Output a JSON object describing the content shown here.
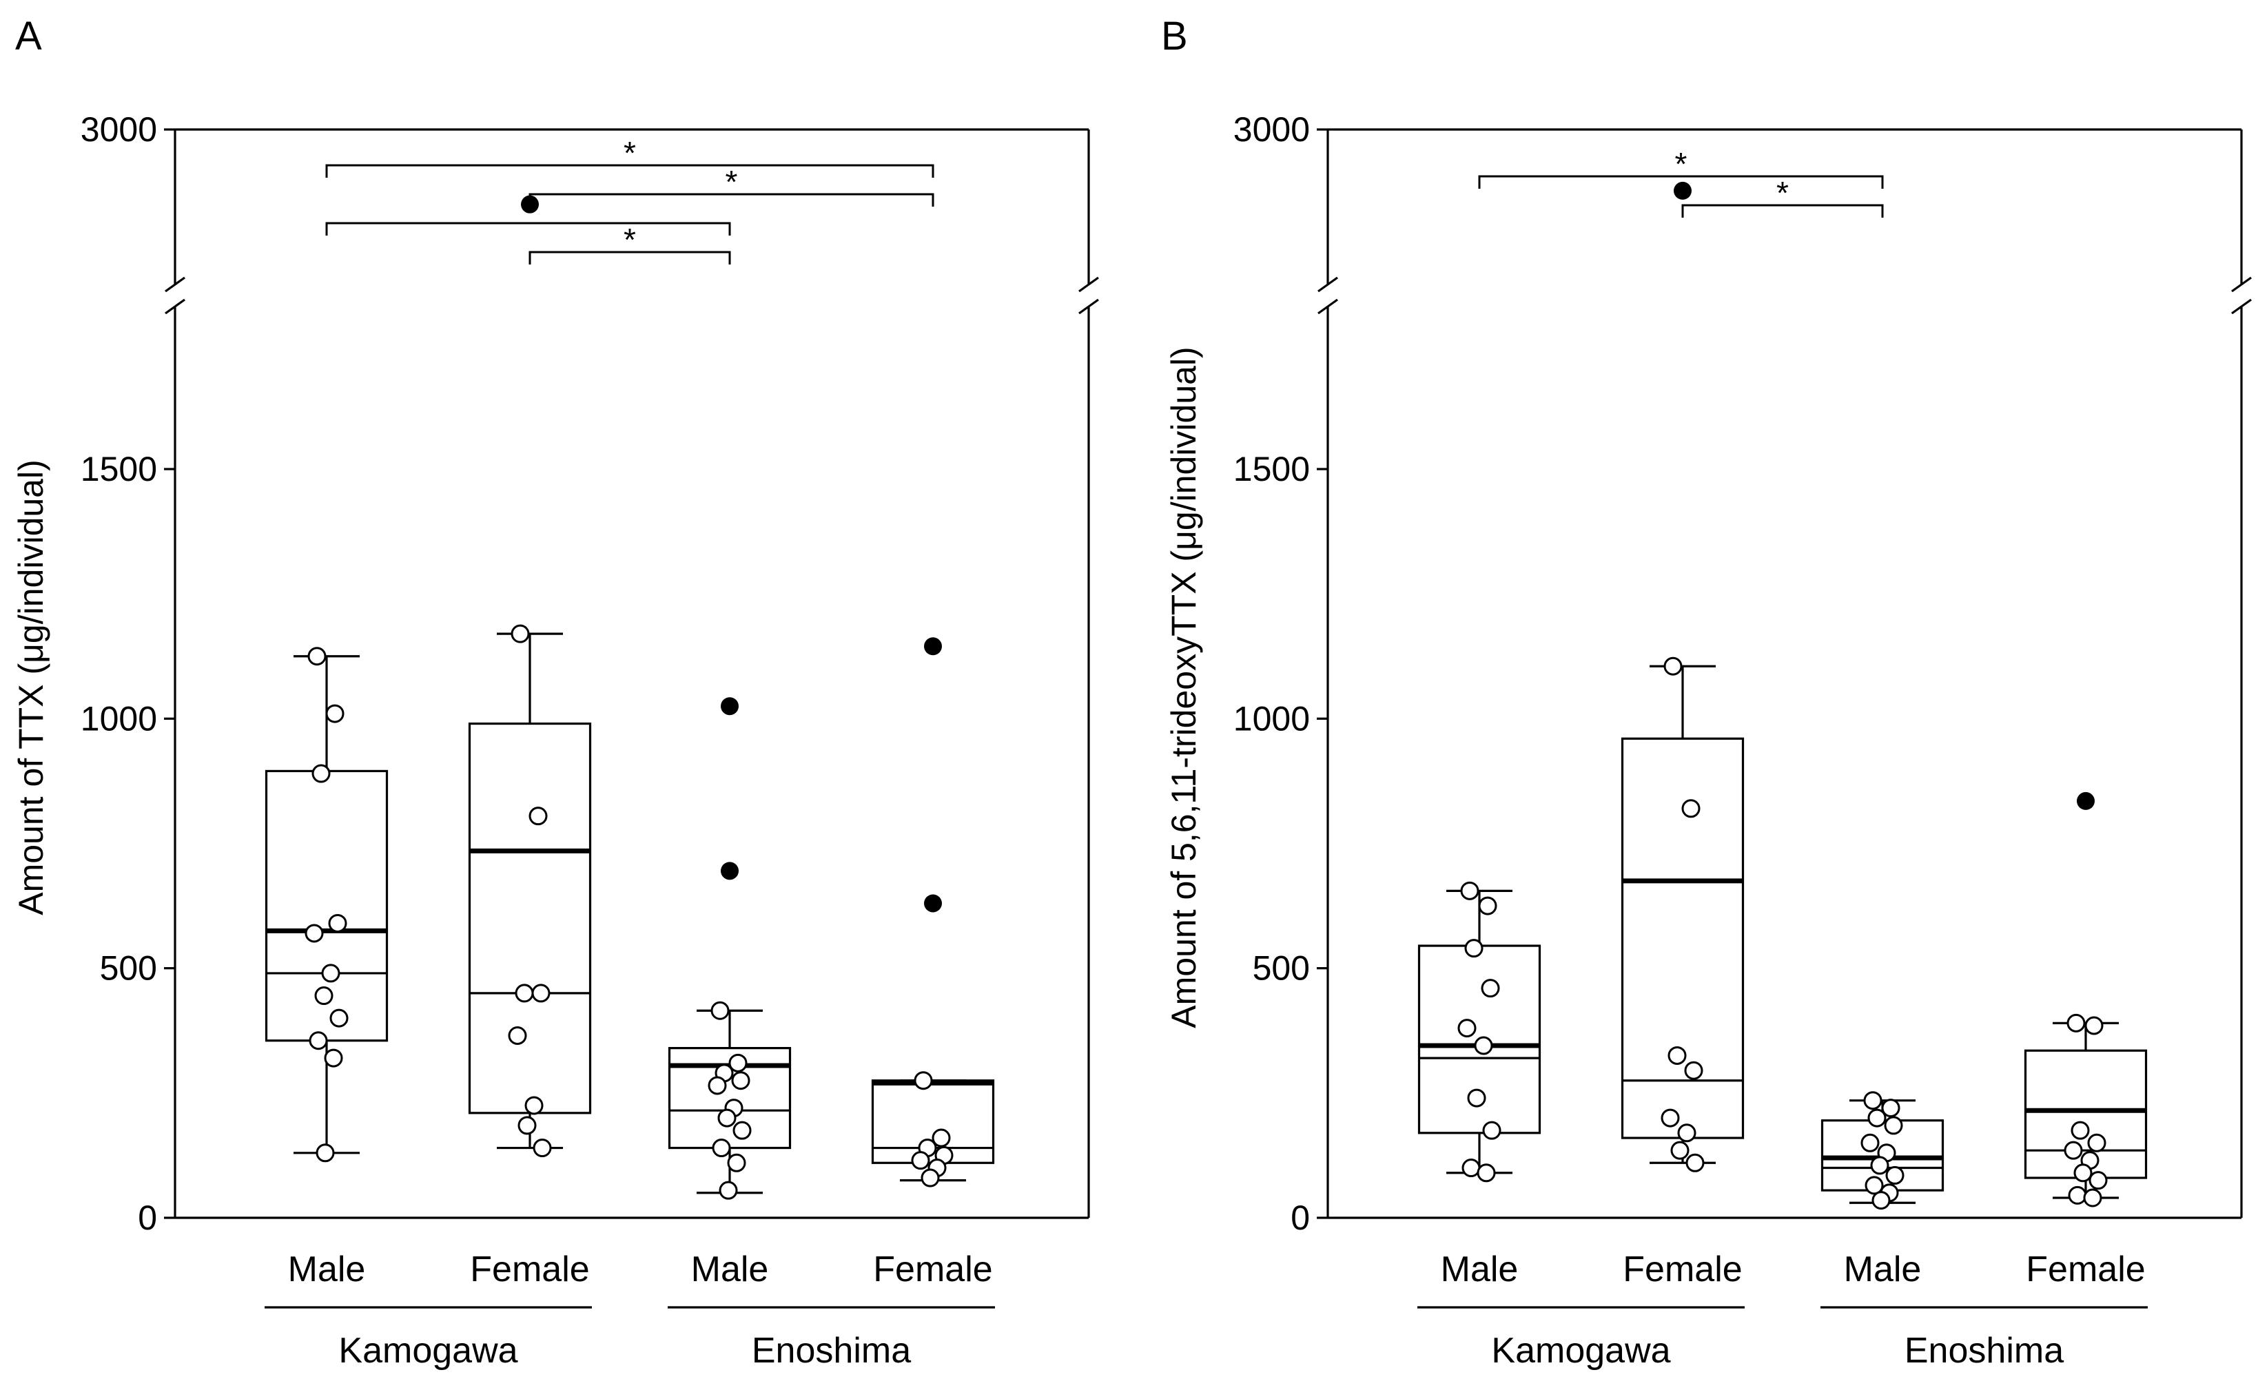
{
  "chart_data": [
    {
      "type": "box",
      "panel_label": "A",
      "ylabel": "Amount of TTX (μg/individual)",
      "yticks": [
        "0",
        "500",
        "1000",
        "1500",
        "3000"
      ],
      "ylim": [
        0,
        1750
      ],
      "axis_break": {
        "from": 1750,
        "to": 3000,
        "upper_top": 3000
      },
      "categories": [
        "Male",
        "Female",
        "Male",
        "Female"
      ],
      "groups": [
        {
          "label": "Kamogawa",
          "spans": [
            0,
            1
          ]
        },
        {
          "label": "Enoshima",
          "spans": [
            2,
            3
          ]
        }
      ],
      "boxes": [
        {
          "q1": 355,
          "median": 490,
          "mean": 575,
          "q3": 895,
          "whisker_low": 130,
          "whisker_high": 1125
        },
        {
          "q1": 210,
          "median": 450,
          "mean": 735,
          "q3": 990,
          "whisker_low": 140,
          "whisker_high": 1170
        },
        {
          "q1": 140,
          "median": 215,
          "mean": 305,
          "q3": 340,
          "whisker_low": 50,
          "whisker_high": 415
        },
        {
          "q1": 110,
          "median": 140,
          "mean": 270,
          "q3": 275,
          "whisker_low": 75,
          "whisker_high": 275
        }
      ],
      "points": [
        [
          1125,
          1010,
          890,
          590,
          570,
          490,
          445,
          400,
          355,
          320,
          130
        ],
        [
          1170,
          805,
          450,
          450,
          365,
          225,
          185,
          140
        ],
        [
          415,
          310,
          290,
          275,
          265,
          220,
          200,
          175,
          140,
          110,
          55
        ],
        [
          275,
          160,
          140,
          125,
          115,
          100,
          80
        ]
      ],
      "outliers": [
        [],
        [
          {
            "value": 2450
          }
        ],
        [
          {
            "value": 1025
          },
          {
            "value": 695
          }
        ],
        [
          {
            "value": 1145
          },
          {
            "value": 630
          }
        ]
      ],
      "significance": [
        {
          "from": 0,
          "to": 3,
          "label": "*"
        },
        {
          "from": 1,
          "to": 3,
          "label": "*"
        },
        {
          "from": 0,
          "to": 2,
          "label": "*"
        },
        {
          "from": 1,
          "to": 2,
          "label": "*"
        }
      ]
    },
    {
      "type": "box",
      "panel_label": "B",
      "ylabel": "Amount of 5,6,11-trideoxyTTX (μg/individual)",
      "yticks": [
        "0",
        "500",
        "1000",
        "1500",
        "3000"
      ],
      "ylim": [
        0,
        1750
      ],
      "axis_break": {
        "from": 1750,
        "to": 3000,
        "upper_top": 3000
      },
      "categories": [
        "Male",
        "Female",
        "Male",
        "Female"
      ],
      "groups": [
        {
          "label": "Kamogawa",
          "spans": [
            0,
            1
          ]
        },
        {
          "label": "Enoshima",
          "spans": [
            2,
            3
          ]
        }
      ],
      "boxes": [
        {
          "q1": 170,
          "median": 320,
          "mean": 345,
          "q3": 545,
          "whisker_low": 90,
          "whisker_high": 655
        },
        {
          "q1": 160,
          "median": 275,
          "mean": 675,
          "q3": 960,
          "whisker_low": 110,
          "whisker_high": 1105
        },
        {
          "q1": 55,
          "median": 100,
          "mean": 120,
          "q3": 195,
          "whisker_low": 30,
          "whisker_high": 235
        },
        {
          "q1": 80,
          "median": 135,
          "mean": 215,
          "q3": 335,
          "whisker_low": 40,
          "whisker_high": 390
        }
      ],
      "points": [
        [
          655,
          625,
          540,
          460,
          380,
          345,
          240,
          175,
          100,
          90
        ],
        [
          1105,
          820,
          325,
          295,
          200,
          170,
          135,
          110
        ],
        [
          235,
          220,
          200,
          185,
          150,
          130,
          105,
          85,
          65,
          50,
          35
        ],
        [
          390,
          385,
          175,
          150,
          135,
          115,
          90,
          75,
          45,
          40
        ]
      ],
      "outliers": [
        [],
        [
          {
            "value": 2550
          }
        ],
        [],
        [
          {
            "value": 835
          }
        ]
      ],
      "significance": [
        {
          "from": 0,
          "to": 2,
          "label": "*"
        },
        {
          "from": 1,
          "to": 2,
          "label": "*"
        }
      ]
    }
  ]
}
